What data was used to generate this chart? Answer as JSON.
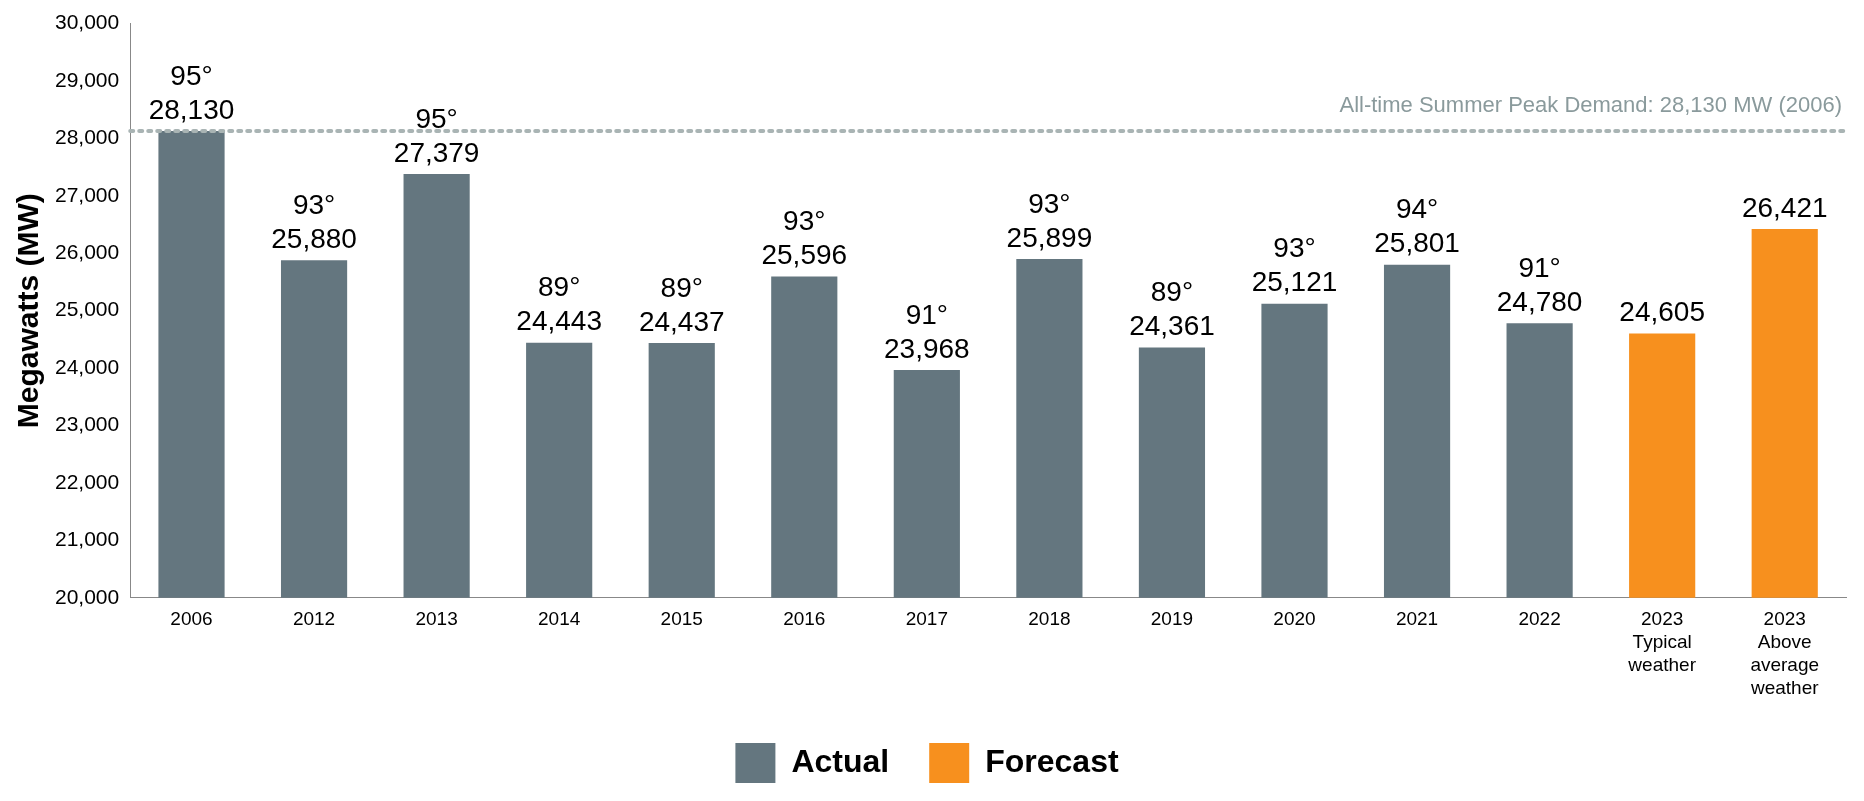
{
  "chart_data": {
    "type": "bar",
    "ylabel": "Megawatts (MW)",
    "categories": [
      "2006",
      "2012",
      "2013",
      "2014",
      "2015",
      "2016",
      "2017",
      "2018",
      "2019",
      "2020",
      "2021",
      "2022",
      "2023 Typical weather",
      "2023 Above average weather"
    ],
    "series": [
      {
        "name": "Actual",
        "color": "#64767f",
        "values": [
          28130,
          25880,
          27379,
          24443,
          24437,
          25596,
          23968,
          25899,
          24361,
          25121,
          25801,
          24780,
          null,
          null
        ],
        "value_labels": [
          "95°\n28,130",
          "93°\n25,880",
          "95°\n27,379",
          "89°\n24,443",
          "89°\n24,437",
          "93°\n25,596",
          "91°\n23,968",
          "93°\n25,899",
          "89°\n24,361",
          "93°\n25,121",
          "94°\n25,801",
          "91°\n24,780",
          null,
          null
        ]
      },
      {
        "name": "Forecast",
        "color": "#f7901e",
        "values": [
          null,
          null,
          null,
          null,
          null,
          null,
          null,
          null,
          null,
          null,
          null,
          null,
          24605,
          26421
        ],
        "value_labels": [
          null,
          null,
          null,
          null,
          null,
          null,
          null,
          null,
          null,
          null,
          null,
          null,
          "24,605",
          "26,421"
        ]
      }
    ],
    "ylim": [
      20000,
      30000
    ],
    "yticks": [
      {
        "value": 20000,
        "label": "20,000"
      },
      {
        "value": 21000,
        "label": "21,000"
      },
      {
        "value": 22000,
        "label": "22,000"
      },
      {
        "value": 23000,
        "label": "23,000"
      },
      {
        "value": 24000,
        "label": "24,000"
      },
      {
        "value": 25000,
        "label": "25,000"
      },
      {
        "value": 26000,
        "label": "26,000"
      },
      {
        "value": 27000,
        "label": "27,000"
      },
      {
        "value": 28000,
        "label": "28,000"
      },
      {
        "value": 29000,
        "label": "29,000"
      },
      {
        "value": 30000,
        "label": "30,000"
      }
    ],
    "grid": false,
    "legend": "bottom",
    "ref_lines": [
      {
        "axis": "y",
        "value": 28130,
        "label": "All-time Summer Peak Demand: 28,130 MW (2006)",
        "color": "#a9b4b4",
        "line_style": "dotted"
      }
    ]
  }
}
